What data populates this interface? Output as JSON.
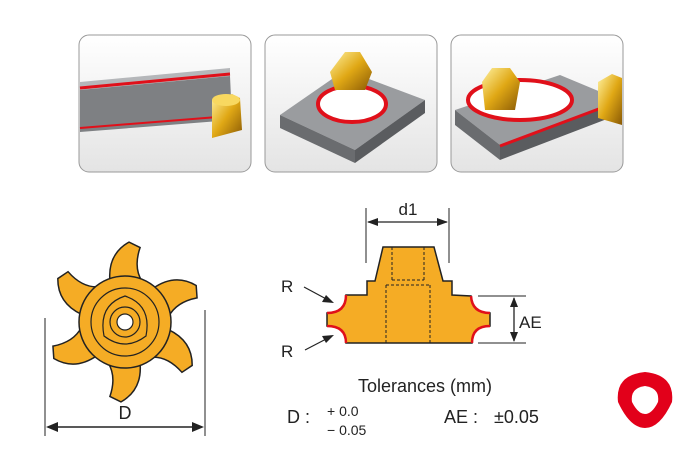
{
  "photos": [
    {
      "icon": "insert-on-bar-edge-render"
    },
    {
      "icon": "insert-in-square-bore-render"
    },
    {
      "icon": "insert-on-plate-hole-and-edge-render"
    }
  ],
  "labels": {
    "d1": "d1",
    "r_top": "R",
    "r_bottom": "R",
    "ae": "AE",
    "d": "D"
  },
  "tolerances": {
    "title": "Tolerances (mm)",
    "d_label": "D :",
    "d_plus": "+ 0.0",
    "d_minus": "− 0.05",
    "ae_label": "AE :",
    "ae_value": "±0.05"
  },
  "colors": {
    "insert": "#f5ac25",
    "edge": "#e0101a",
    "steel": "#8a8c8f",
    "logo": "#e2001a"
  }
}
